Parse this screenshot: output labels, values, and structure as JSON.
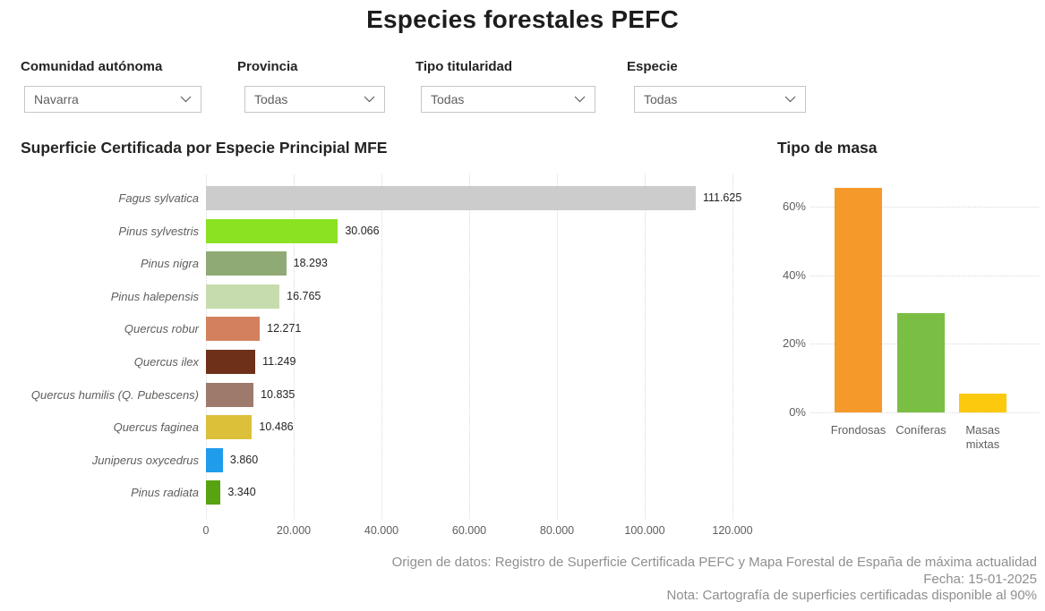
{
  "page": {
    "title": "Especies forestales PEFC"
  },
  "filters": [
    {
      "label": "Comunidad autónoma",
      "value": "Navarra"
    },
    {
      "label": "Provincia",
      "value": "Todas"
    },
    {
      "label": "Tipo titularidad",
      "value": "Todas"
    },
    {
      "label": "Especie",
      "value": "Todas"
    }
  ],
  "chart_data": [
    {
      "type": "bar",
      "orientation": "horizontal",
      "title": "Superficie Certificada por Especie Principial MFE",
      "categories": [
        "Fagus sylvatica",
        "Pinus sylvestris",
        "Pinus nigra",
        "Pinus halepensis",
        "Quercus robur",
        "Quercus ilex",
        "Quercus humilis (Q. Pubescens)",
        "Quercus faginea",
        "Juniperus oxycedrus",
        "Pinus radiata"
      ],
      "values": [
        111625,
        30066,
        18293,
        16765,
        12271,
        11249,
        10835,
        10486,
        3860,
        3340
      ],
      "value_labels": [
        "111.625",
        "30.066",
        "18.293",
        "16.765",
        "12.271",
        "11.249",
        "10.835",
        "10.486",
        "3.860",
        "3.340"
      ],
      "bar_colors": [
        "#cccccc",
        "#8ae222",
        "#8faa74",
        "#c7dcae",
        "#d3815c",
        "#6e3019",
        "#9d7a6c",
        "#dcc03a",
        "#1f9cec",
        "#57a311"
      ],
      "xlim": [
        0,
        120000
      ],
      "x_ticks": [
        "0",
        "20.000",
        "40.000",
        "60.000",
        "80.000",
        "100.000",
        "120.000"
      ],
      "x_tick_values": [
        0,
        20000,
        40000,
        60000,
        80000,
        100000,
        120000
      ],
      "grid": "vertical-dotted",
      "legend": "none"
    },
    {
      "type": "bar",
      "orientation": "vertical",
      "title": "Tipo de masa",
      "categories": [
        "Frondosas",
        "Coníferas",
        "Masas mixtas"
      ],
      "values": [
        65.6,
        29,
        5.5
      ],
      "unit": "%",
      "bar_colors": [
        "#f5992b",
        "#7abf44",
        "#fdc90e"
      ],
      "ylim": [
        0,
        69.5
      ],
      "y_ticks": [
        "0%",
        "20%",
        "40%",
        "60%"
      ],
      "y_tick_values": [
        0,
        20,
        40,
        60
      ],
      "grid": "horizontal-dotted",
      "legend": "none"
    }
  ],
  "footer": {
    "line1": "Origen de datos: Registro de Superficie Certificada PEFC y Mapa Forestal de España de máxima actualidad",
    "line2": "Fecha: 15-01-2025",
    "line3": "Nota: Cartografía de superficies certificadas disponible al 90%"
  },
  "colors": {
    "title_text": "#1d1d1d",
    "axis_text": "#605e5c",
    "footer_text": "#8f8f8f",
    "gridline": "#d9d9d9",
    "slicer_border": "#c8c6c4"
  }
}
